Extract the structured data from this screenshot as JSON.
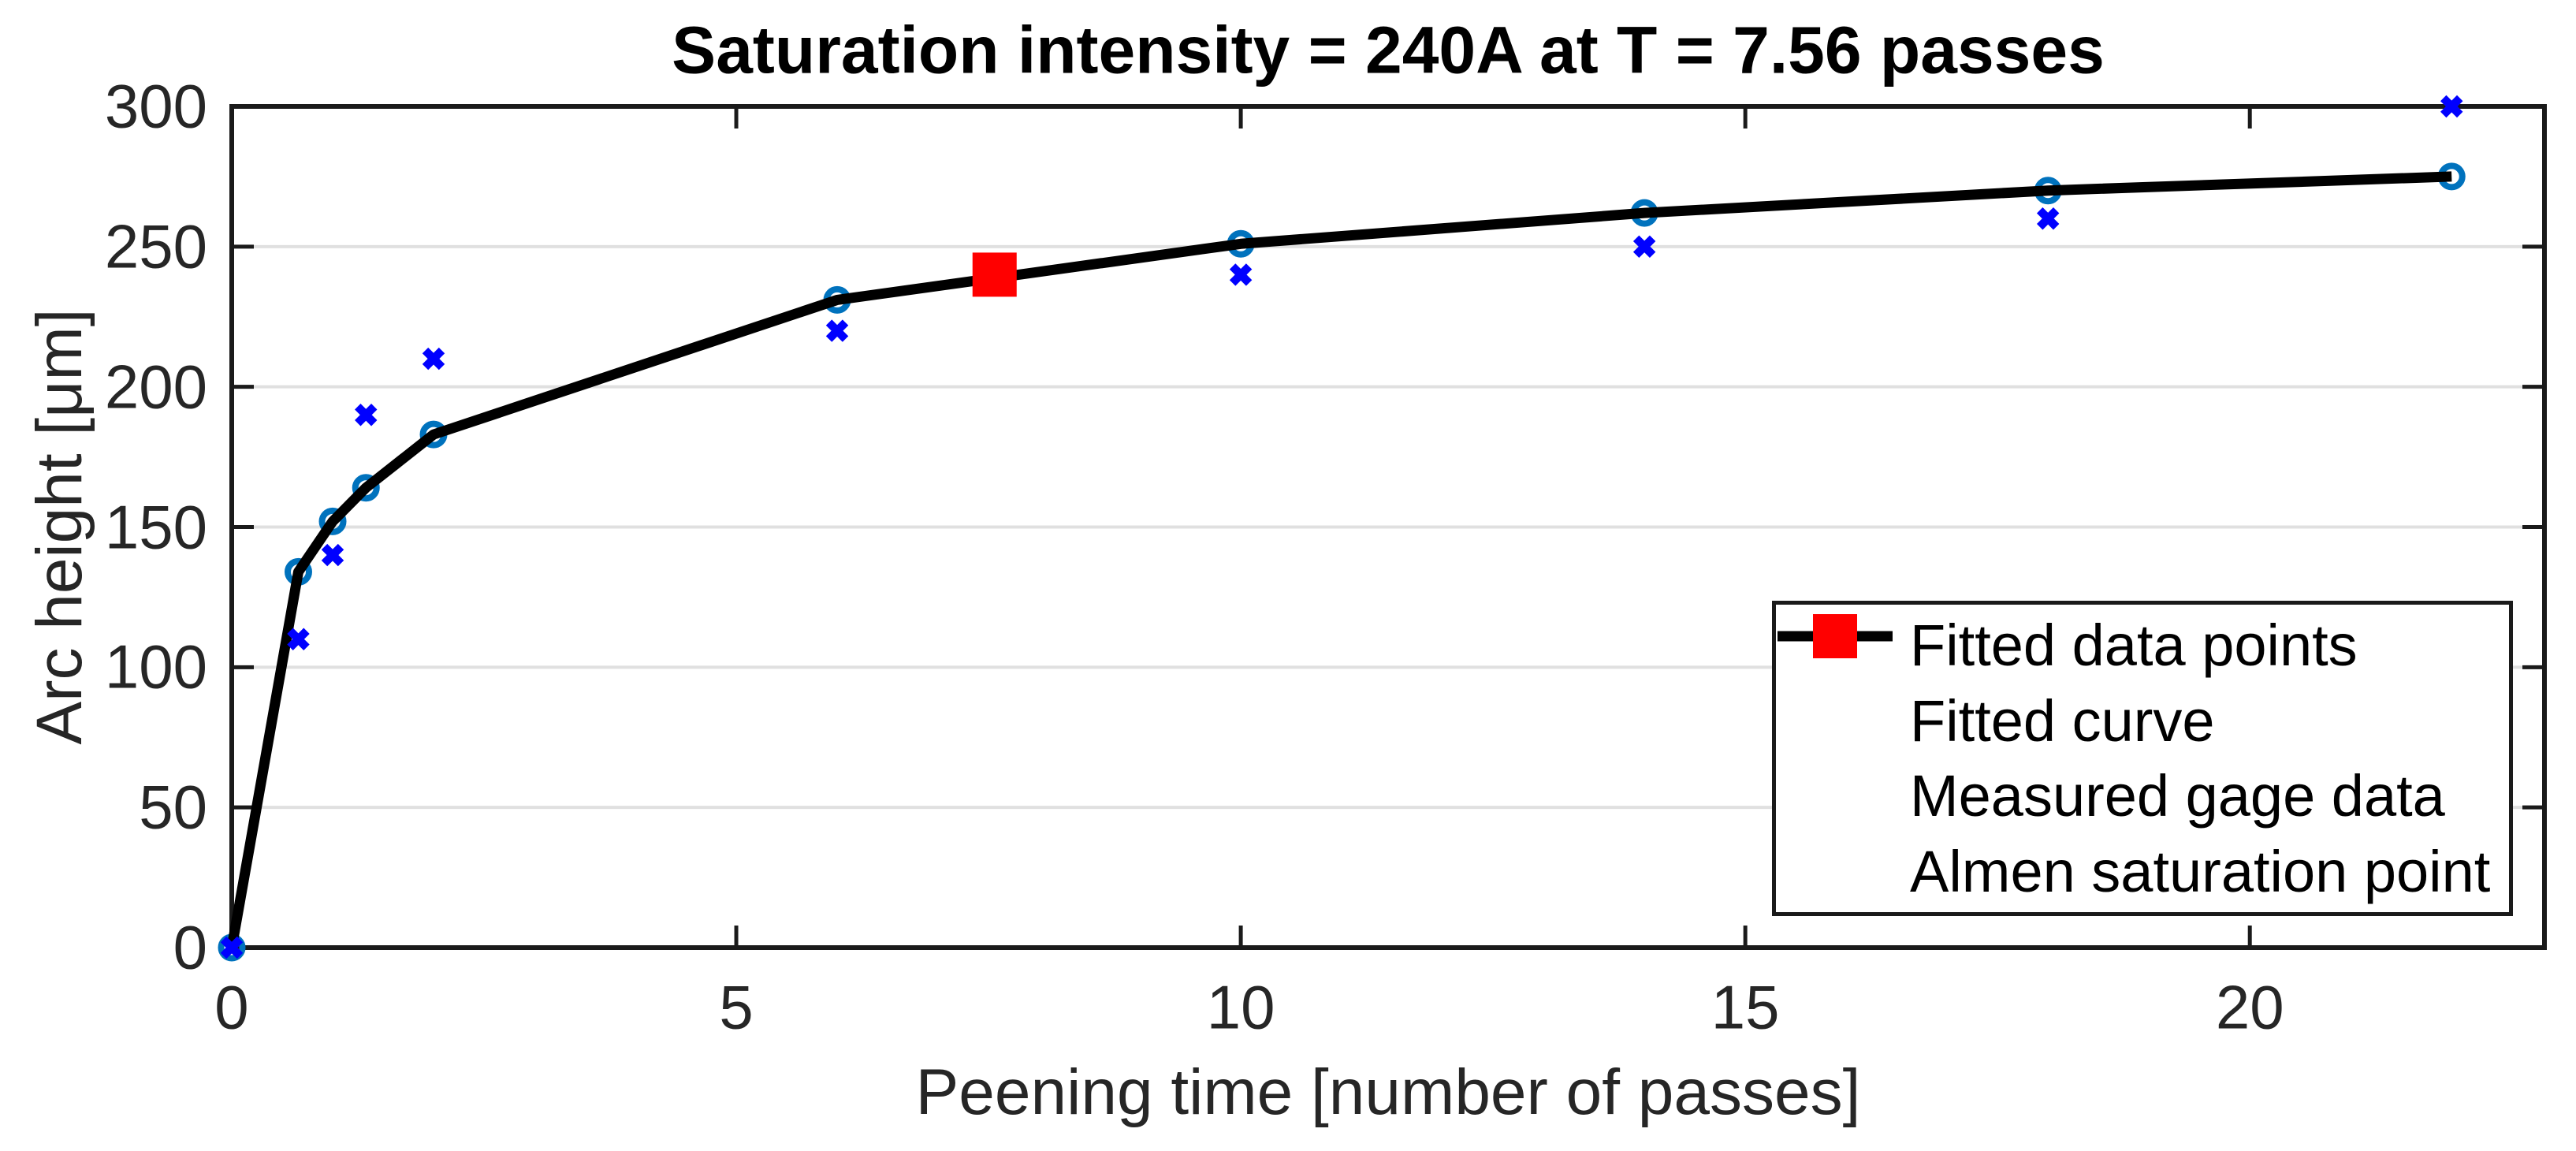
{
  "chart_data": {
    "type": "line",
    "title": "Saturation intensity = 240A at T = 7.56 passes",
    "xlabel": "Peening time [number of passes]",
    "ylabel": "Arc height [μm]",
    "xlim": [
      0,
      22.92
    ],
    "ylim": [
      0,
      300
    ],
    "xticks": {
      "values": [
        0,
        5,
        10,
        15,
        20
      ],
      "labels": [
        "0",
        "5",
        "10",
        "15",
        "20"
      ]
    },
    "yticks": {
      "values": [
        0,
        50,
        100,
        150,
        200,
        250,
        300
      ],
      "labels": [
        "0",
        "50",
        "100",
        "150",
        "200",
        "250",
        "300"
      ]
    },
    "grid": {
      "horizontal": true,
      "vertical": false,
      "color": "#E0E0E0"
    },
    "axis_color": "#1A1A1A",
    "series": [
      {
        "name": "Fitted data points",
        "type": "scatter",
        "marker": "circle-open",
        "color": "#0072BD",
        "x": [
          0,
          0.66,
          1,
          1.33,
          2,
          6,
          10,
          14,
          18,
          22
        ],
        "y": [
          0,
          134,
          152,
          164,
          183,
          231,
          251,
          262,
          270,
          275
        ]
      },
      {
        "name": "Fitted curve",
        "type": "line",
        "color": "#000000",
        "x": [
          0,
          0.66,
          1,
          1.33,
          2,
          6,
          10,
          14,
          18,
          22
        ],
        "y": [
          0,
          134,
          152,
          164,
          183,
          231,
          251,
          262,
          270,
          275
        ]
      },
      {
        "name": "Measured gage data",
        "type": "scatter",
        "marker": "x",
        "color": "#0000FF",
        "x": [
          0,
          0.66,
          1,
          1.33,
          2,
          6,
          10,
          14,
          18,
          22
        ],
        "y": [
          0,
          110,
          140,
          190,
          210,
          220,
          240,
          250,
          260,
          300
        ]
      },
      {
        "name": "Almen saturation point",
        "type": "scatter",
        "marker": "square-filled",
        "color": "#FF0000",
        "x": [
          7.56
        ],
        "y": [
          240
        ]
      }
    ],
    "saturation": {
      "intensity": "240A",
      "time_passes": 7.56
    },
    "legend": {
      "position": "lower right",
      "items": [
        {
          "label": "Fitted data points"
        },
        {
          "label": "Fitted curve"
        },
        {
          "label": "Measured gage data"
        },
        {
          "label": "Almen saturation point"
        }
      ]
    }
  }
}
